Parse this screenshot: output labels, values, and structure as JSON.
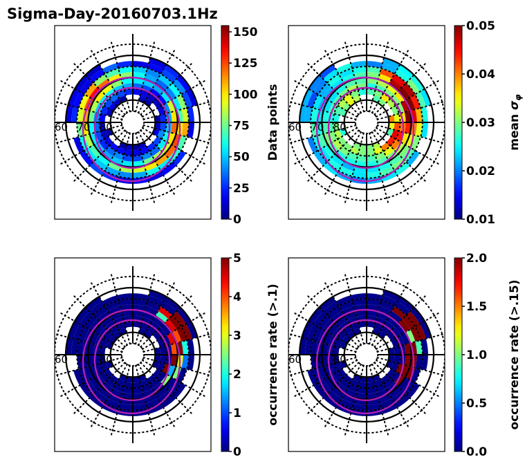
{
  "figure": {
    "title": "Sigma-Day-20160703.1Hz"
  },
  "chart_data": [
    {
      "type": "heatmap",
      "projection": "polar (magnetic latitude / MLT)",
      "title": "",
      "lat_labels": [
        "60",
        "70",
        "80"
      ],
      "colorbar": {
        "label": "Data points",
        "label_math": false,
        "range": [
          0,
          155
        ],
        "ticks": [
          0,
          25,
          50,
          75,
          100,
          125,
          150
        ],
        "tick_labels": [
          "0",
          "25",
          "50",
          "75",
          "100",
          "125",
          "150"
        ],
        "colormap": "jet"
      },
      "rings": [
        {
          "lat": [
            60,
            62.5
          ],
          "values": [
            0,
            0,
            0,
            0,
            0,
            0,
            0,
            15,
            20,
            25,
            15,
            0,
            0,
            0,
            10,
            12,
            15,
            15,
            0,
            0,
            0,
            0,
            0,
            0
          ]
        },
        {
          "lat": [
            62.5,
            65
          ],
          "values": [
            20,
            15,
            20,
            25,
            0,
            15,
            25,
            30,
            40,
            30,
            20,
            15,
            25,
            35,
            20,
            15,
            20,
            25,
            0,
            15,
            20,
            30,
            25,
            15
          ]
        },
        {
          "lat": [
            65,
            67.5
          ],
          "values": [
            45,
            60,
            55,
            65,
            70,
            110,
            90,
            80,
            60,
            50,
            40,
            50,
            60,
            70,
            80,
            110,
            95,
            90,
            75,
            60,
            55,
            50,
            45,
            40
          ]
        },
        {
          "lat": [
            67.5,
            70
          ],
          "values": [
            90,
            100,
            110,
            120,
            125,
            100,
            70,
            55,
            40,
            35,
            45,
            60,
            80,
            100,
            120,
            135,
            125,
            110,
            100,
            85,
            70,
            60,
            75,
            85
          ]
        },
        {
          "lat": [
            70,
            72.5
          ],
          "values": [
            60,
            75,
            85,
            90,
            100,
            120,
            100,
            90,
            55,
            45,
            50,
            55,
            60,
            80,
            95,
            100,
            85,
            75,
            60,
            55,
            50,
            45,
            50,
            55
          ]
        },
        {
          "lat": [
            72.5,
            75
          ],
          "values": [
            30,
            40,
            35,
            55,
            60,
            50,
            45,
            40,
            20,
            20,
            30,
            35,
            45,
            50,
            60,
            55,
            50,
            40,
            35,
            30,
            25,
            35,
            40,
            30
          ]
        },
        {
          "lat": [
            75,
            77.5
          ],
          "values": [
            15,
            20,
            25,
            30,
            40,
            30,
            25,
            15,
            10,
            10,
            15,
            20,
            25,
            30,
            35,
            30,
            25,
            20,
            15,
            10,
            15,
            20,
            20,
            15
          ]
        },
        {
          "lat": [
            77.5,
            80
          ],
          "values": [
            5,
            10,
            0,
            0,
            15,
            10,
            5,
            0,
            0,
            5,
            10,
            0,
            0,
            5,
            10,
            15,
            10,
            0,
            0,
            5,
            0,
            0,
            5,
            10
          ]
        }
      ]
    },
    {
      "type": "heatmap",
      "projection": "polar (magnetic latitude / MLT)",
      "title": "",
      "lat_labels": [
        "60",
        "70",
        "80"
      ],
      "colorbar": {
        "label": "mean σφ",
        "label_math": true,
        "range": [
          0.01,
          0.05
        ],
        "ticks": [
          0.01,
          0.02,
          0.03,
          0.04,
          0.05
        ],
        "tick_labels": [
          "0.01",
          "0.02",
          "0.03",
          "0.04",
          "0.05"
        ],
        "colormap": "jet"
      },
      "rings": [
        {
          "lat": [
            60,
            62.5
          ],
          "values": [
            0,
            0,
            0,
            0,
            0,
            0,
            0,
            0.024,
            0.026,
            0.025,
            0.022,
            0,
            0,
            0,
            0.018,
            0.02,
            0.022,
            0.022,
            0,
            0,
            0,
            0,
            0,
            0
          ]
        },
        {
          "lat": [
            62.5,
            65
          ],
          "values": [
            0.022,
            0.024,
            0.026,
            0.022,
            0,
            0.024,
            0.026,
            0.028,
            0.03,
            0.026,
            0.022,
            0.02,
            0.022,
            0.026,
            0.024,
            0.02,
            0.018,
            0.022,
            0,
            0.02,
            0.022,
            0.024,
            0.022,
            0.02
          ]
        },
        {
          "lat": [
            65,
            67.5
          ],
          "values": [
            0.026,
            0.028,
            0.03,
            0.028,
            0.03,
            0.034,
            0.038,
            0.044,
            0.048,
            0.046,
            0.042,
            0.028,
            0.026,
            0.024,
            0.026,
            0.022,
            0.024,
            0.026,
            0.028,
            0.026,
            0.024,
            0.026,
            0.026,
            0.024
          ]
        },
        {
          "lat": [
            67.5,
            70
          ],
          "values": [
            0.024,
            0.026,
            0.028,
            0.03,
            0.034,
            0.04,
            0.046,
            0.05,
            0.05,
            0.048,
            0.036,
            0.03,
            0.028,
            0.026,
            0.024,
            0.022,
            0.022,
            0.024,
            0.026,
            0.028,
            0.026,
            0.024,
            0.022,
            0.024
          ]
        },
        {
          "lat": [
            70,
            72.5
          ],
          "values": [
            0.026,
            0.028,
            0.03,
            0.032,
            0.036,
            0.044,
            0.05,
            0.048,
            0.036,
            0.034,
            0.032,
            0.03,
            0.028,
            0.028,
            0.026,
            0.024,
            0.024,
            0.026,
            0.028,
            0.03,
            0.028,
            0.026,
            0.026,
            0.026
          ]
        },
        {
          "lat": [
            72.5,
            75
          ],
          "values": [
            0.028,
            0.03,
            0.034,
            0.04,
            0.044,
            0.04,
            0.036,
            0.03,
            0.03,
            0.03,
            0.028,
            0.026,
            0.03,
            0.032,
            0.03,
            0.028,
            0.028,
            0.026,
            0.028,
            0.03,
            0.032,
            0.03,
            0.028,
            0.028
          ]
        },
        {
          "lat": [
            75,
            77.5
          ],
          "values": [
            0.03,
            0.034,
            0.04,
            0.044,
            0.046,
            0.042,
            0.034,
            0.03,
            0.032,
            0.036,
            0.03,
            0.028,
            0.026,
            0.03,
            0.034,
            0.032,
            0.028,
            0.026,
            0.03,
            0.032,
            0.03,
            0.03,
            0.032,
            0.03
          ]
        },
        {
          "lat": [
            77.5,
            80
          ],
          "values": [
            0.03,
            0.032,
            0,
            0,
            0.028,
            0.034,
            0.04,
            0,
            0,
            0.03,
            0.028,
            0,
            0,
            0.032,
            0.034,
            0.03,
            0.028,
            0,
            0,
            0.026,
            0,
            0,
            0.03,
            0.03
          ]
        }
      ]
    },
    {
      "type": "heatmap",
      "projection": "polar (magnetic latitude / MLT)",
      "title": "",
      "lat_labels": [
        "60",
        "70",
        "80"
      ],
      "colorbar": {
        "label": "occurrence rate (>.1)",
        "label_math": false,
        "range": [
          0,
          5
        ],
        "ticks": [
          0,
          1,
          2,
          3,
          4,
          5
        ],
        "tick_labels": [
          "0",
          "1",
          "2",
          "3",
          "4",
          "5"
        ],
        "colormap": "jet"
      },
      "rings": [
        {
          "lat": [
            60,
            62.5
          ],
          "values": [
            0,
            0,
            0,
            0,
            0,
            0,
            0,
            0.05,
            0.05,
            0.05,
            0.05,
            0,
            0,
            0,
            0.05,
            0.05,
            0.05,
            0.05,
            0,
            0,
            0,
            0,
            0,
            0
          ]
        },
        {
          "lat": [
            62.5,
            65
          ],
          "values": [
            0.05,
            0.05,
            0.05,
            0.05,
            0,
            0.05,
            0.05,
            5,
            5,
            0.05,
            0.05,
            0.05,
            0.05,
            0.05,
            0.05,
            0.05,
            0.05,
            0.05,
            0,
            0.05,
            0.05,
            0.05,
            0.05,
            0.05
          ]
        },
        {
          "lat": [
            65,
            67.5
          ],
          "values": [
            0.05,
            0.05,
            0.05,
            0.05,
            0.05,
            1.2,
            2,
            5,
            5,
            4.5,
            0.05,
            0.05,
            0.05,
            0.05,
            0.05,
            0.05,
            0.05,
            0.05,
            0.05,
            0.05,
            0.05,
            0.05,
            0.05,
            0.05
          ]
        },
        {
          "lat": [
            67.5,
            70
          ],
          "values": [
            0.05,
            0.05,
            0.05,
            0.05,
            2.5,
            3,
            5,
            4,
            4.5,
            2.2,
            0.05,
            0.05,
            0.05,
            0.05,
            0.05,
            0.05,
            0.05,
            0.05,
            0.05,
            0.05,
            0.05,
            0.05,
            0.05,
            0.05
          ]
        },
        {
          "lat": [
            70,
            72.5
          ],
          "values": [
            0.05,
            0.05,
            0.05,
            2.5,
            1.5,
            5,
            4,
            4.5,
            0.05,
            0.05,
            0.05,
            0.05,
            0.05,
            0.05,
            0.05,
            0.05,
            0.05,
            0.05,
            0.05,
            0.05,
            0.05,
            0.05,
            0.05,
            0.05
          ]
        },
        {
          "lat": [
            72.5,
            75
          ],
          "values": [
            0.05,
            0.05,
            0.05,
            0.05,
            5,
            0.05,
            0.05,
            0.05,
            0.05,
            0.05,
            0.05,
            0.05,
            0.05,
            0.05,
            0.05,
            0.05,
            0.05,
            0.05,
            0.05,
            0.05,
            0.05,
            0.05,
            0.05,
            0.05
          ]
        },
        {
          "lat": [
            75,
            77.5
          ],
          "values": [
            0.05,
            0.05,
            0.05,
            0.05,
            0.05,
            0.05,
            0.05,
            0.05,
            0.05,
            0.05,
            0.05,
            0.05,
            0.05,
            0.05,
            0.05,
            0.05,
            0.05,
            0.05,
            0.05,
            0.05,
            0.05,
            0.05,
            0.05,
            0.05
          ]
        },
        {
          "lat": [
            77.5,
            80
          ],
          "values": [
            0.05,
            0.05,
            0,
            0,
            0.05,
            0.05,
            0.05,
            0,
            0,
            0.05,
            0.05,
            0,
            0,
            0.05,
            0.05,
            0.05,
            0.05,
            0,
            0,
            0.05,
            0,
            0,
            0.05,
            0.05
          ]
        }
      ]
    },
    {
      "type": "heatmap",
      "projection": "polar (magnetic latitude / MLT)",
      "title": "",
      "lat_labels": [
        "60",
        "70",
        "80"
      ],
      "colorbar": {
        "label": "occurrence rate (>.15)",
        "label_math": false,
        "range": [
          0,
          2
        ],
        "ticks": [
          0,
          0.5,
          1,
          1.5,
          2
        ],
        "tick_labels": [
          "0.0",
          "0.5",
          "1.0",
          "1.5",
          "2.0"
        ],
        "colormap": "jet"
      },
      "rings": [
        {
          "lat": [
            60,
            62.5
          ],
          "values": [
            0,
            0,
            0,
            0,
            0,
            0,
            0,
            0.02,
            0.02,
            0.02,
            0.02,
            0,
            0,
            0,
            0.02,
            0.02,
            0.02,
            0.02,
            0,
            0,
            0,
            0,
            0,
            0
          ]
        },
        {
          "lat": [
            62.5,
            65
          ],
          "values": [
            0.02,
            0.02,
            0.02,
            0.02,
            0,
            0.02,
            0.02,
            2,
            2,
            0.02,
            0.02,
            0.02,
            0.02,
            0.02,
            0.02,
            0.02,
            0.02,
            0.02,
            0,
            0.02,
            0.02,
            0.02,
            0.02,
            0.02
          ]
        },
        {
          "lat": [
            65,
            67.5
          ],
          "values": [
            0.02,
            0.02,
            0.02,
            0.02,
            0.02,
            0.02,
            0.9,
            2,
            2,
            2,
            0.02,
            0.02,
            0.02,
            0.02,
            0.02,
            0.02,
            0.02,
            0.02,
            0.02,
            0.02,
            0.02,
            0.02,
            0.02,
            0.02
          ]
        },
        {
          "lat": [
            67.5,
            70
          ],
          "values": [
            0.02,
            0.02,
            0.02,
            0.02,
            2,
            2,
            2,
            1,
            2,
            0.02,
            0.02,
            0.02,
            0.02,
            0.02,
            0.02,
            0.02,
            0.02,
            0.02,
            0.02,
            0.02,
            0.02,
            0.02,
            0.02,
            0.02
          ]
        },
        {
          "lat": [
            70,
            72.5
          ],
          "values": [
            0.02,
            0.02,
            0.02,
            2,
            2,
            2,
            2,
            0.02,
            0.02,
            0.02,
            0.02,
            0.02,
            0.02,
            0.02,
            0.02,
            0.02,
            0.02,
            0.02,
            0.02,
            0.02,
            0.02,
            0.02,
            0.02,
            0.02
          ]
        },
        {
          "lat": [
            72.5,
            75
          ],
          "values": [
            0.02,
            0.02,
            0.02,
            0.02,
            2,
            0.02,
            0.02,
            0.02,
            0.02,
            0.02,
            0.02,
            0.02,
            0.02,
            0.02,
            0.02,
            0.02,
            0.02,
            0.02,
            0.02,
            0.02,
            0.02,
            0.02,
            0.02,
            0.02
          ]
        },
        {
          "lat": [
            75,
            77.5
          ],
          "values": [
            0.02,
            0.02,
            0.02,
            0.02,
            0.02,
            0.02,
            0.02,
            0.02,
            0.02,
            0.02,
            0.02,
            0.02,
            0.02,
            0.02,
            0.02,
            0.02,
            0.02,
            0.02,
            0.02,
            0.02,
            0.02,
            0.02,
            0.02,
            0.02
          ]
        },
        {
          "lat": [
            77.5,
            80
          ],
          "values": [
            0.02,
            0.02,
            0,
            0,
            0.02,
            0.02,
            0.02,
            0,
            0,
            0.02,
            0.02,
            0,
            0,
            0.02,
            0.02,
            0.02,
            0.02,
            0,
            0,
            0.02,
            0,
            0,
            0.02,
            0.02
          ]
        }
      ]
    }
  ],
  "colors": {
    "oval": "#b41eb4",
    "grid": "#000000"
  }
}
